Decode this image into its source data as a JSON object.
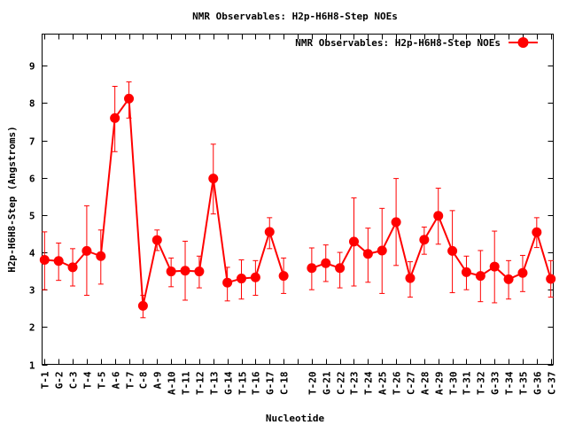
{
  "chart_data": {
    "type": "line",
    "title": "NMR Observables: H2p-H6H8-Step NOEs",
    "xlabel": "Nucleotide",
    "ylabel": "H2p-H6H8-Step (Angstroms)",
    "ylim": [
      1,
      9.85
    ],
    "yticks": [
      1,
      2,
      3,
      4,
      5,
      6,
      7,
      8,
      9
    ],
    "grid": false,
    "legend_position": "top-right",
    "categories": [
      "T-1",
      "G-2",
      "C-3",
      "T-4",
      "T-5",
      "A-6",
      "T-7",
      "C-8",
      "A-9",
      "A-10",
      "T-11",
      "T-12",
      "T-13",
      "G-14",
      "T-15",
      "T-16",
      "G-17",
      "C-18",
      "",
      "T-20",
      "G-21",
      "C-22",
      "T-23",
      "T-24",
      "A-25",
      "T-26",
      "C-27",
      "A-28",
      "A-29",
      "T-30",
      "T-31",
      "T-32",
      "G-33",
      "T-34",
      "T-35",
      "G-36",
      "C-37"
    ],
    "series": [
      {
        "name": "NMR Observables: H2p-H6H8-Step NOEs",
        "color": "#ff0000",
        "segments": [
          [
            {
              "x": "T-1",
              "y": 3.8,
              "lo": 3.0,
              "hi": 4.55
            },
            {
              "x": "G-2",
              "y": 3.77,
              "lo": 3.25,
              "hi": 4.25
            },
            {
              "x": "C-3",
              "y": 3.6,
              "lo": 3.1,
              "hi": 4.1
            },
            {
              "x": "T-4",
              "y": 4.04,
              "lo": 2.85,
              "hi": 5.25
            },
            {
              "x": "T-5",
              "y": 3.9,
              "lo": 3.15,
              "hi": 4.6
            },
            {
              "x": "A-6",
              "y": 7.6,
              "lo": 6.7,
              "hi": 8.45
            },
            {
              "x": "T-7",
              "y": 8.12,
              "lo": 7.6,
              "hi": 8.57
            },
            {
              "x": "C-8",
              "y": 2.57,
              "lo": 2.25,
              "hi": 2.85
            },
            {
              "x": "A-9",
              "y": 4.33,
              "lo": 4.05,
              "hi": 4.6
            },
            {
              "x": "A-10",
              "y": 3.49,
              "lo": 3.08,
              "hi": 3.85
            },
            {
              "x": "T-11",
              "y": 3.51,
              "lo": 2.72,
              "hi": 4.3
            },
            {
              "x": "T-12",
              "y": 3.49,
              "lo": 3.05,
              "hi": 3.9
            },
            {
              "x": "T-13",
              "y": 5.98,
              "lo": 5.03,
              "hi": 6.9
            },
            {
              "x": "G-14",
              "y": 3.19,
              "lo": 2.7,
              "hi": 3.6
            },
            {
              "x": "T-15",
              "y": 3.3,
              "lo": 2.75,
              "hi": 3.8
            },
            {
              "x": "T-16",
              "y": 3.33,
              "lo": 2.85,
              "hi": 3.78
            },
            {
              "x": "G-17",
              "y": 4.55,
              "lo": 4.1,
              "hi": 4.93
            },
            {
              "x": "C-18",
              "y": 3.37,
              "lo": 2.9,
              "hi": 3.85
            }
          ],
          [
            {
              "x": "T-20",
              "y": 3.58,
              "lo": 3.0,
              "hi": 4.12
            },
            {
              "x": "G-21",
              "y": 3.71,
              "lo": 3.22,
              "hi": 4.2
            },
            {
              "x": "C-22",
              "y": 3.58,
              "lo": 3.05,
              "hi": 4.0
            },
            {
              "x": "T-23",
              "y": 4.29,
              "lo": 3.1,
              "hi": 5.46
            },
            {
              "x": "T-24",
              "y": 3.96,
              "lo": 3.2,
              "hi": 4.65
            },
            {
              "x": "A-25",
              "y": 4.05,
              "lo": 2.9,
              "hi": 5.18
            },
            {
              "x": "T-26",
              "y": 4.81,
              "lo": 3.65,
              "hi": 5.98
            },
            {
              "x": "C-27",
              "y": 3.31,
              "lo": 2.8,
              "hi": 3.75
            },
            {
              "x": "A-28",
              "y": 4.34,
              "lo": 3.95,
              "hi": 4.68
            },
            {
              "x": "A-29",
              "y": 4.98,
              "lo": 4.22,
              "hi": 5.72
            },
            {
              "x": "T-30",
              "y": 4.04,
              "lo": 2.92,
              "hi": 5.12
            },
            {
              "x": "T-31",
              "y": 3.47,
              "lo": 3.0,
              "hi": 3.9
            },
            {
              "x": "T-32",
              "y": 3.37,
              "lo": 2.68,
              "hi": 4.05
            },
            {
              "x": "G-33",
              "y": 3.62,
              "lo": 2.65,
              "hi": 4.57
            },
            {
              "x": "T-34",
              "y": 3.28,
              "lo": 2.75,
              "hi": 3.78
            },
            {
              "x": "T-35",
              "y": 3.45,
              "lo": 2.95,
              "hi": 3.92
            },
            {
              "x": "G-36",
              "y": 4.54,
              "lo": 4.13,
              "hi": 4.93
            },
            {
              "x": "C-37",
              "y": 3.29,
              "lo": 2.8,
              "hi": 3.78
            }
          ]
        ]
      }
    ]
  }
}
